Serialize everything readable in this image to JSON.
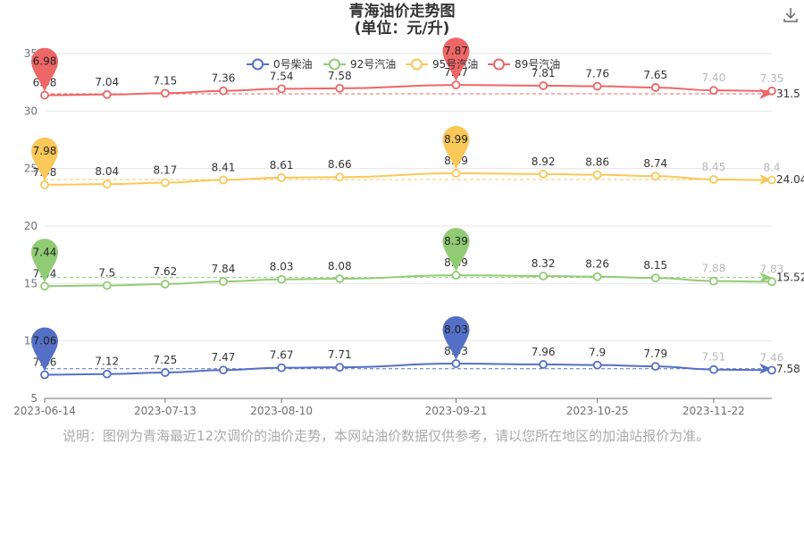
{
  "header": {
    "title_line1": "青海油价走势图",
    "title_line2": "(单位：元/升)"
  },
  "toolbar": {
    "download_icon": "download-icon"
  },
  "note": "说明：图例为青海最近12次调价的油价走势，本网站油价数据仅供参考，请以您所在地区的加油站报价为准。",
  "chart_data": {
    "type": "line",
    "x": [
      "2023-06-14",
      "2023-06-29",
      "2023-07-13",
      "2023-07-27",
      "2023-08-10",
      "2023-08-24",
      "2023-09-21",
      "2023-10-12",
      "2023-10-25",
      "2023-11-08",
      "2023-11-22",
      "2023-12-06"
    ],
    "x_tick_labels": [
      "2023-06-14",
      "2023-07-13",
      "2023-08-10",
      "2023-09-21",
      "2023-10-25",
      "2023-11-22"
    ],
    "ylim": [
      5,
      35
    ],
    "y_ticks": [
      5,
      10,
      15,
      20,
      25,
      30,
      35
    ],
    "grid": true,
    "legend_position": "top-center",
    "series": [
      {
        "name": "0号柴油",
        "color": "#5470c6",
        "values": [
          7.06,
          7.12,
          7.25,
          7.47,
          7.67,
          7.71,
          8.03,
          7.96,
          7.9,
          7.79,
          7.51,
          7.46
        ],
        "labels": [
          "7.06",
          "7.12",
          "7.25",
          "7.47",
          "7.67",
          "7.71",
          "8.03",
          "7.96",
          "7.9",
          "7.79",
          "7.51",
          "7.46"
        ],
        "max_label": "8.03",
        "min_label": "7.06",
        "avg_label": "7.58",
        "avg_value": 7.58
      },
      {
        "name": "92号汽油",
        "color": "#91cc75",
        "values": [
          7.44,
          7.5,
          7.62,
          7.84,
          8.03,
          8.08,
          8.39,
          8.32,
          8.26,
          8.15,
          7.88,
          7.83
        ],
        "labels": [
          "7.44",
          "7.5",
          "7.62",
          "7.84",
          "8.03",
          "8.08",
          "8.39",
          "8.32",
          "8.26",
          "8.15",
          "7.88",
          "7.83"
        ],
        "max_label": "8.39",
        "min_label": "7.44",
        "avg_label": "15.52",
        "avg_value": 15.52
      },
      {
        "name": "95号汽油",
        "color": "#fac858",
        "values": [
          7.98,
          8.04,
          8.17,
          8.41,
          8.61,
          8.66,
          8.99,
          8.92,
          8.86,
          8.74,
          8.45,
          8.4
        ],
        "labels": [
          "7.98",
          "8.04",
          "8.17",
          "8.41",
          "8.61",
          "8.66",
          "8.99",
          "8.92",
          "8.86",
          "8.74",
          "8.45",
          "8.4"
        ],
        "max_label": "8.99",
        "min_label": "7.98",
        "avg_label": "24.04",
        "avg_value": 24.04
      },
      {
        "name": "89号汽油",
        "color": "#ee6666",
        "values": [
          6.98,
          7.04,
          7.15,
          7.36,
          7.54,
          7.58,
          7.87,
          7.81,
          7.76,
          7.65,
          7.4,
          7.35
        ],
        "labels": [
          "6.98",
          "7.04",
          "7.15",
          "7.36",
          "7.54",
          "7.58",
          "7.87",
          "7.81",
          "7.76",
          "7.65",
          "7.40",
          "7.35"
        ],
        "max_label": "7.87",
        "min_label": "6.98",
        "avg_label": "31.5",
        "avg_value": 31.5
      }
    ]
  }
}
